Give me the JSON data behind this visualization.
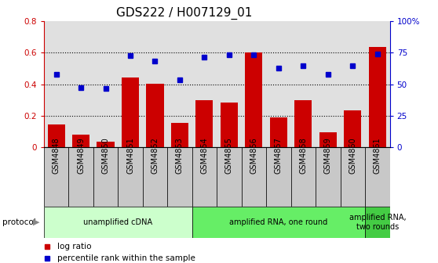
{
  "title": "GDS222 / H007129_01",
  "samples": [
    "GSM4848",
    "GSM4849",
    "GSM4850",
    "GSM4851",
    "GSM4852",
    "GSM4853",
    "GSM4854",
    "GSM4855",
    "GSM4856",
    "GSM4857",
    "GSM4858",
    "GSM4859",
    "GSM4860",
    "GSM4861"
  ],
  "log_ratio": [
    0.145,
    0.08,
    0.035,
    0.44,
    0.405,
    0.155,
    0.3,
    0.285,
    0.6,
    0.19,
    0.3,
    0.095,
    0.235,
    0.635
  ],
  "percentile_rank": [
    57.5,
    47.5,
    46.5,
    72.5,
    68.5,
    53.5,
    71.5,
    73.0,
    73.0,
    63.0,
    64.5,
    57.5,
    64.5,
    74.0
  ],
  "protocols": [
    {
      "label": "unamplified cDNA",
      "start": 0,
      "end": 6,
      "color": "#ccffcc"
    },
    {
      "label": "amplified RNA, one round",
      "start": 6,
      "end": 13,
      "color": "#66ee66"
    },
    {
      "label": "amplified RNA,\ntwo rounds",
      "start": 13,
      "end": 14,
      "color": "#44cc44"
    }
  ],
  "protocol_label": "protocol",
  "bar_color": "#cc0000",
  "dot_color": "#0000cc",
  "left_ylim": [
    0,
    0.8
  ],
  "right_ylim": [
    0,
    100
  ],
  "left_yticks": [
    0,
    0.2,
    0.4,
    0.6,
    0.8
  ],
  "right_yticks": [
    0,
    25,
    50,
    75,
    100
  ],
  "right_yticklabels": [
    "0",
    "25",
    "50",
    "75",
    "100%"
  ],
  "plot_bg": "#e0e0e0",
  "label_bg": "#c8c8c8",
  "legend_red_label": "log ratio",
  "legend_blue_label": "percentile rank within the sample",
  "title_fontsize": 11,
  "tick_fontsize": 7.5,
  "sample_fontsize": 7
}
